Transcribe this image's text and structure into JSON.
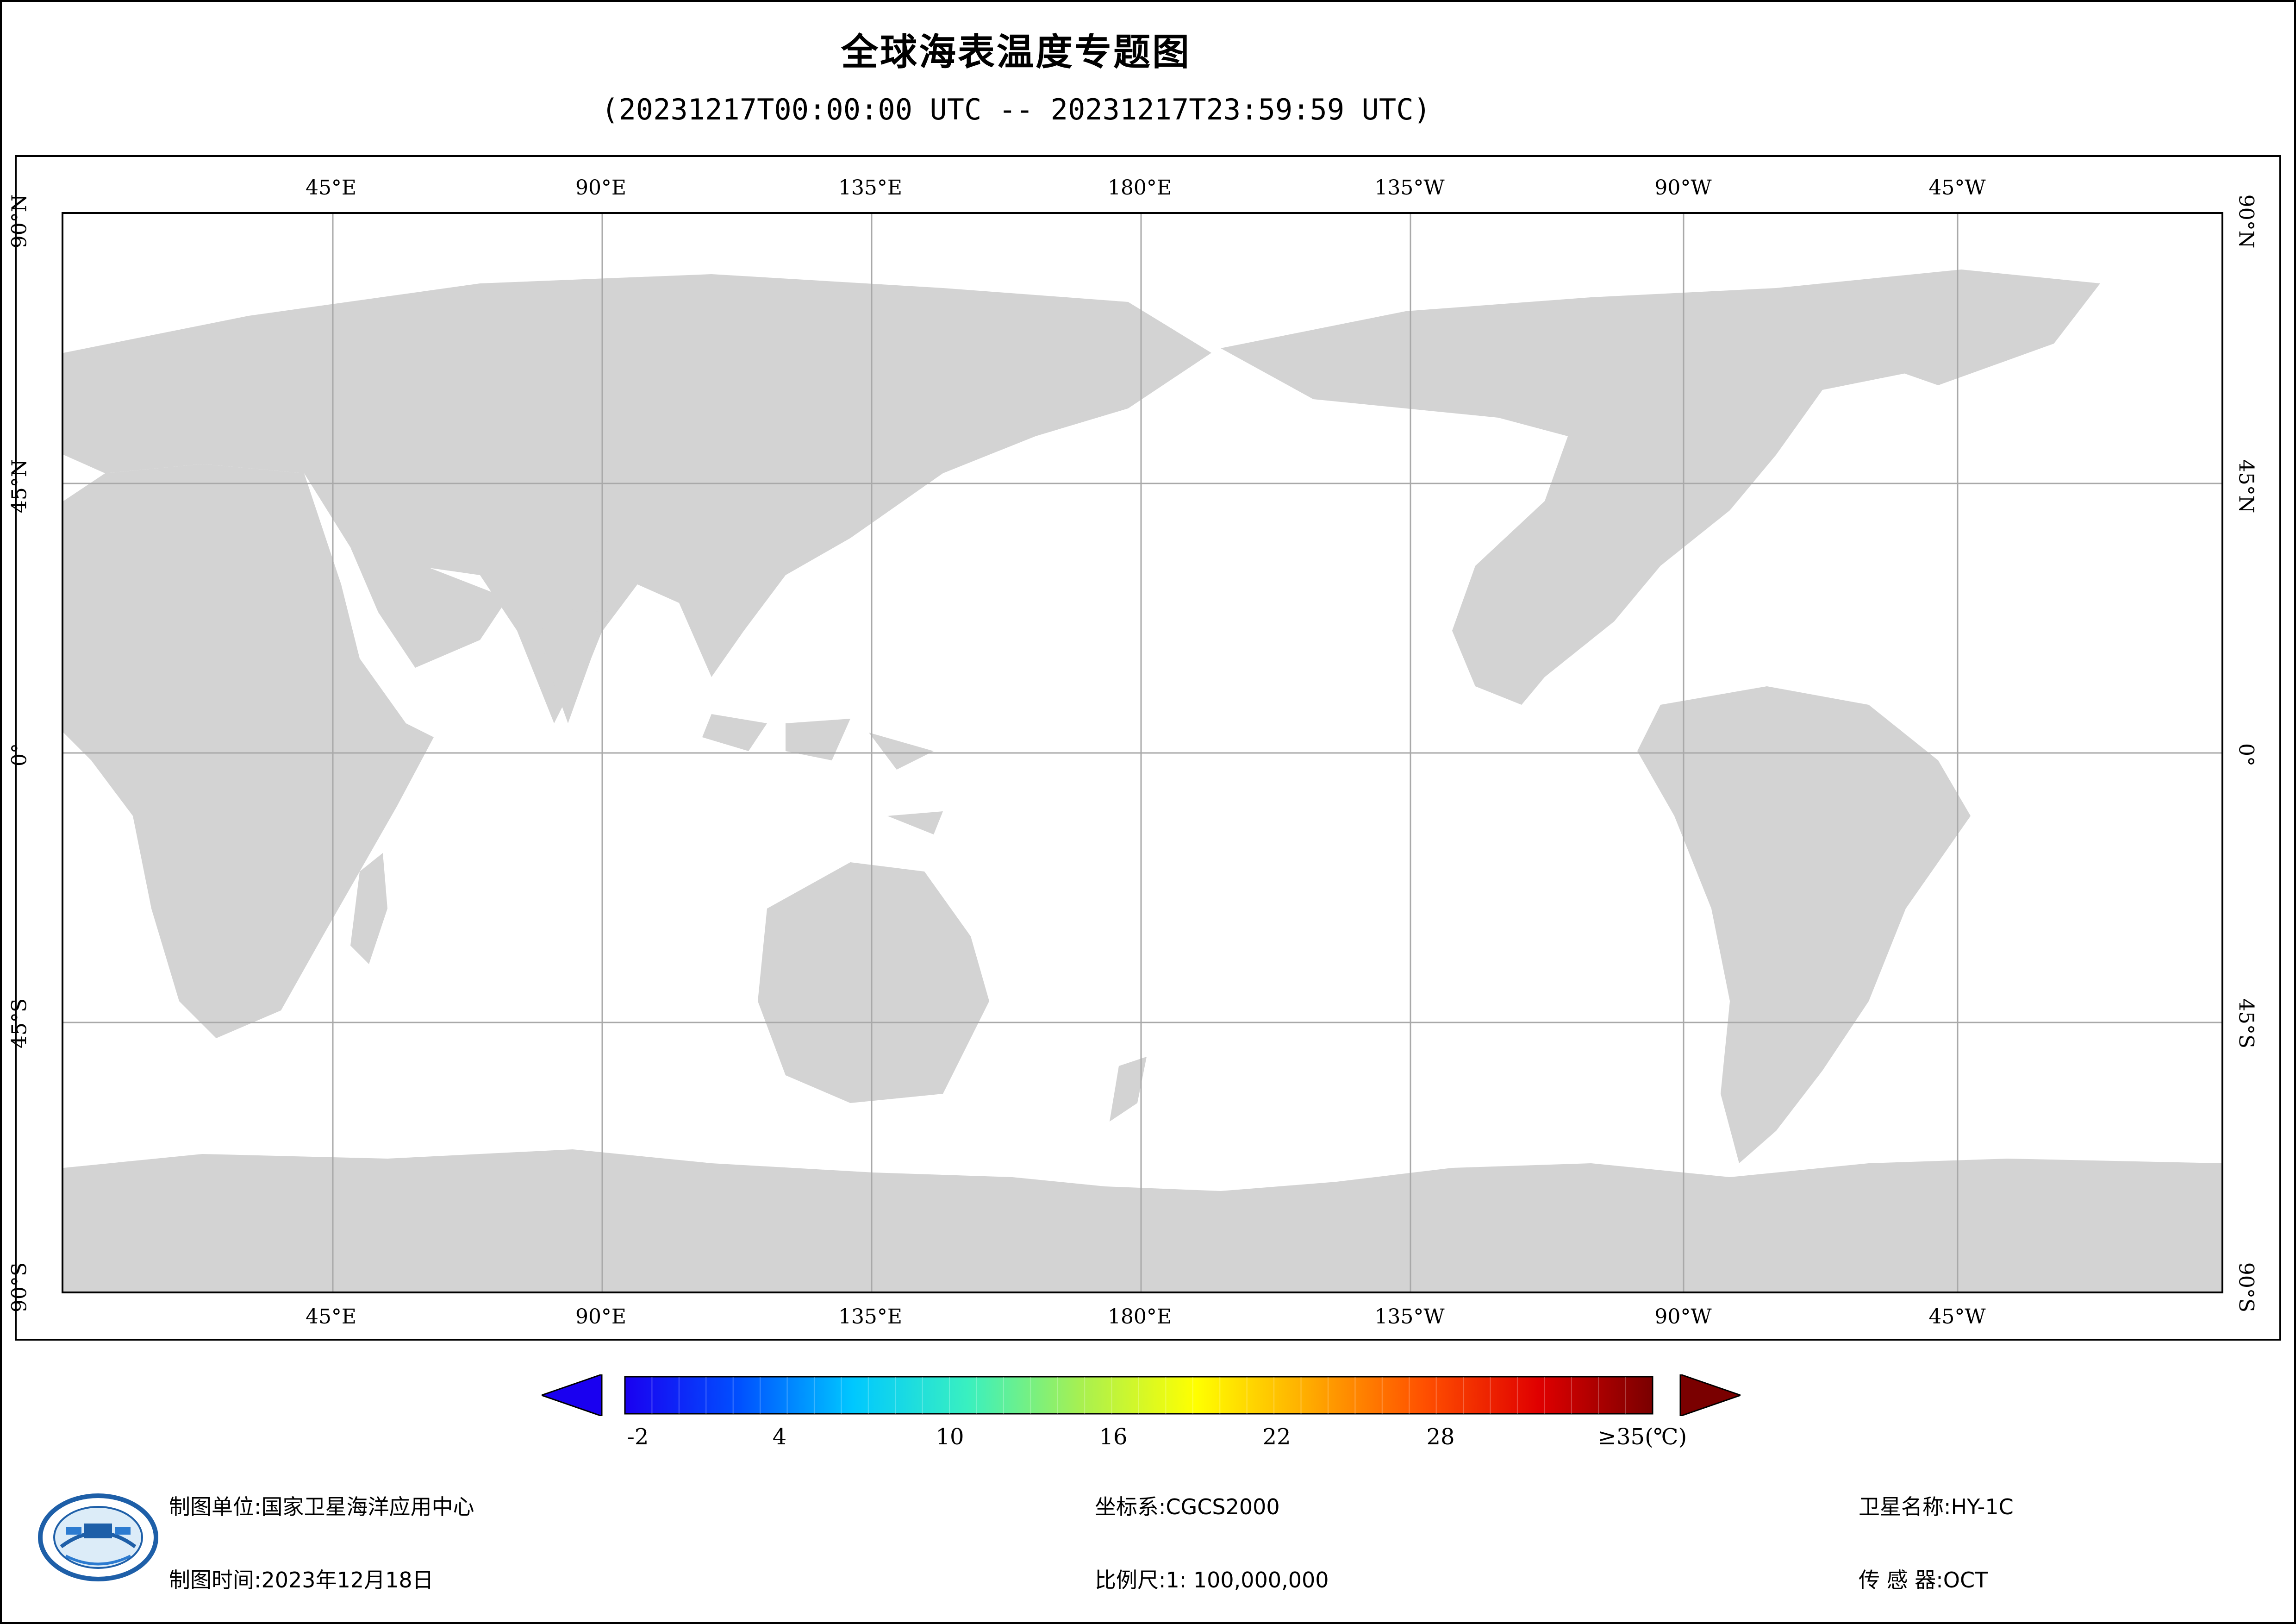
{
  "header": {
    "title": "全球海表温度专题图",
    "subtitle": "(20231217T00:00:00 UTC -- 20231217T23:59:59 UTC)"
  },
  "map": {
    "longitude_labels": [
      "45°E",
      "90°E",
      "135°E",
      "180°E",
      "135°W",
      "90°W",
      "45°W"
    ],
    "latitude_labels": [
      "90°N",
      "45°N",
      "0°",
      "45°S",
      "90°S"
    ],
    "colors": {
      "land": "#d3d3d3",
      "no_data": "#ffffff",
      "graticule": "#a9a9a9"
    }
  },
  "colorbar": {
    "tick_labels": [
      "-2",
      "4",
      "10",
      "16",
      "22",
      "28",
      "≥35(℃)"
    ],
    "colors": [
      "#1a00f0",
      "#0050ff",
      "#00c8ff",
      "#39f0c0",
      "#a8f050",
      "#ffff00",
      "#ffaa00",
      "#ff5000",
      "#e00000",
      "#7a0000"
    ]
  },
  "footer": {
    "mapping_unit_label": "制图单位:",
    "mapping_unit_value": "国家卫星海洋应用中心",
    "mapping_time_label": "制图时间:",
    "mapping_time_value": "2023年12月18日",
    "crs_label": "坐标系:",
    "crs_value": "CGCS2000",
    "scale_label": "比例尺:",
    "scale_value": "1: 100,000,000",
    "satellite_label": "卫星名称:",
    "satellite_value": "HY-1C",
    "sensor_label": "传 感 器:",
    "sensor_value": "OCT"
  },
  "chart_data": {
    "type": "heatmap",
    "title": "全球海表温度专题图",
    "subtitle": "(20231217T00:00:00 UTC -- 20231217T23:59:59 UTC)",
    "x_axis_labels": [
      "45°E",
      "90°E",
      "135°E",
      "180°E",
      "135°W",
      "90°W",
      "45°W"
    ],
    "y_axis_labels": [
      "90°N",
      "45°N",
      "0°",
      "45°S",
      "90°S"
    ],
    "colorbar_range": [
      -2,
      35
    ],
    "colorbar_ticks": [
      -2,
      4,
      10,
      16,
      22,
      28,
      35
    ],
    "unit": "℃",
    "grid": true
  }
}
